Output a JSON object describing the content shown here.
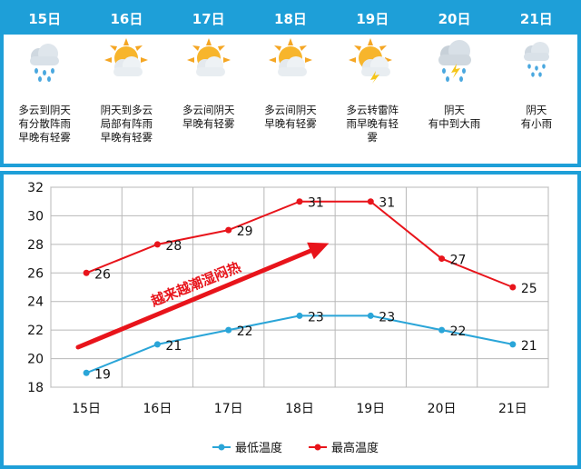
{
  "colors": {
    "accent": "#1e9fd8",
    "low_series": "#2aa5d8",
    "high_series": "#e8141b",
    "arrow": "#e8141b",
    "annotation": "#e8141b"
  },
  "forecast": {
    "days": [
      {
        "date": "15日",
        "icon": "cloud-rain-icon",
        "desc": "多云到阴天\n有分散阵雨\n早晚有轻雾"
      },
      {
        "date": "16日",
        "icon": "sun-cloud-icon",
        "desc": "阴天到多云\n局部有阵雨\n早晚有轻雾"
      },
      {
        "date": "17日",
        "icon": "sun-cloud-icon",
        "desc": "多云间阴天\n早晚有轻雾"
      },
      {
        "date": "18日",
        "icon": "sun-cloud-icon",
        "desc": "多云间阴天\n早晚有轻雾"
      },
      {
        "date": "19日",
        "icon": "sun-thunder-icon",
        "desc": "多云转雷阵\n雨早晚有轻\n雾"
      },
      {
        "date": "20日",
        "icon": "thunder-rain-icon",
        "desc": "阴天\n有中到大雨"
      },
      {
        "date": "21日",
        "icon": "cloud-light-rain-icon",
        "desc": "阴天\n有小雨"
      }
    ]
  },
  "chart_data": {
    "type": "line",
    "categories": [
      "15日",
      "16日",
      "17日",
      "18日",
      "19日",
      "20日",
      "21日"
    ],
    "series": [
      {
        "name": "最低温度",
        "values": [
          19,
          21,
          22,
          23,
          23,
          22,
          21
        ]
      },
      {
        "name": "最高温度",
        "values": [
          26,
          28,
          29,
          31,
          31,
          27,
          25
        ]
      }
    ],
    "ylim": [
      18,
      32
    ],
    "yticks": [
      "18",
      "20",
      "22",
      "24",
      "26",
      "28",
      "30",
      "32"
    ],
    "grid": true,
    "legend": "bottom",
    "annotation": "越来越潮湿闷热"
  }
}
